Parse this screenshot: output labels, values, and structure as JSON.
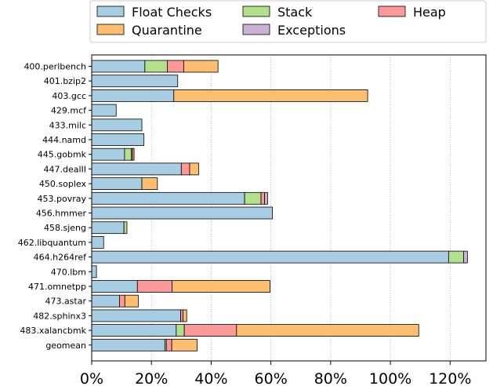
{
  "chart_data": {
    "type": "bar",
    "orientation": "horizontal",
    "stacked": true,
    "categories": [
      "400.perlbench",
      "401.bzip2",
      "403.gcc",
      "429.mcf",
      "433.milc",
      "444.namd",
      "445.gobmk",
      "447.dealII",
      "450.soplex",
      "453.povray",
      "456.hmmer",
      "458.sjeng",
      "462.libquantum",
      "464.h264ref",
      "470.lbm",
      "471.omnetpp",
      "473.astar",
      "482.sphinx3",
      "483.xalancbmk",
      "geomean"
    ],
    "series": [
      {
        "name": "Float Checks",
        "color": "#a6cde2",
        "values": [
          17.8,
          28.8,
          27.5,
          8.2,
          16.8,
          17.5,
          11.0,
          30.0,
          16.8,
          51.2,
          60.5,
          10.8,
          4.0,
          119.5,
          1.6,
          15.3,
          9.3,
          29.8,
          28.3,
          24.5
        ]
      },
      {
        "name": "Stack",
        "color": "#b3e08a",
        "values": [
          7.5,
          0,
          0,
          0,
          0,
          0,
          2.3,
          0,
          0,
          5.5,
          0,
          1.0,
          0,
          5.0,
          0,
          0,
          0,
          0,
          2.7,
          0.5
        ]
      },
      {
        "name": "Heap",
        "color": "#fb9a99",
        "values": [
          5.5,
          0,
          0,
          0,
          0,
          0,
          0.4,
          2.8,
          0,
          1.2,
          0,
          0,
          0,
          0,
          0,
          11.6,
          1.8,
          0.8,
          17.5,
          1.8
        ]
      },
      {
        "name": "Quarantine",
        "color": "#fdbf6f",
        "values": [
          11.5,
          0,
          64.9,
          0,
          0,
          0,
          0.5,
          3.0,
          5.2,
          0,
          0,
          0,
          0,
          0,
          0,
          32.8,
          4.5,
          1.2,
          61.0,
          8.5
        ]
      },
      {
        "name": "Exceptions",
        "color": "#cab2d6",
        "values": [
          0,
          0,
          0,
          0,
          0,
          0,
          0,
          0,
          0,
          1.0,
          0,
          0,
          0,
          1.3,
          0,
          0,
          0,
          0,
          0,
          0
        ]
      }
    ],
    "x_ticks": [
      "0%",
      "20%",
      "40%",
      "60%",
      "80%",
      "100%",
      "120%"
    ],
    "x_tick_values": [
      0,
      20,
      40,
      60,
      80,
      100,
      120
    ],
    "xlim": [
      0,
      132
    ],
    "grid": "vertical-dotted",
    "legend_position": "top"
  }
}
